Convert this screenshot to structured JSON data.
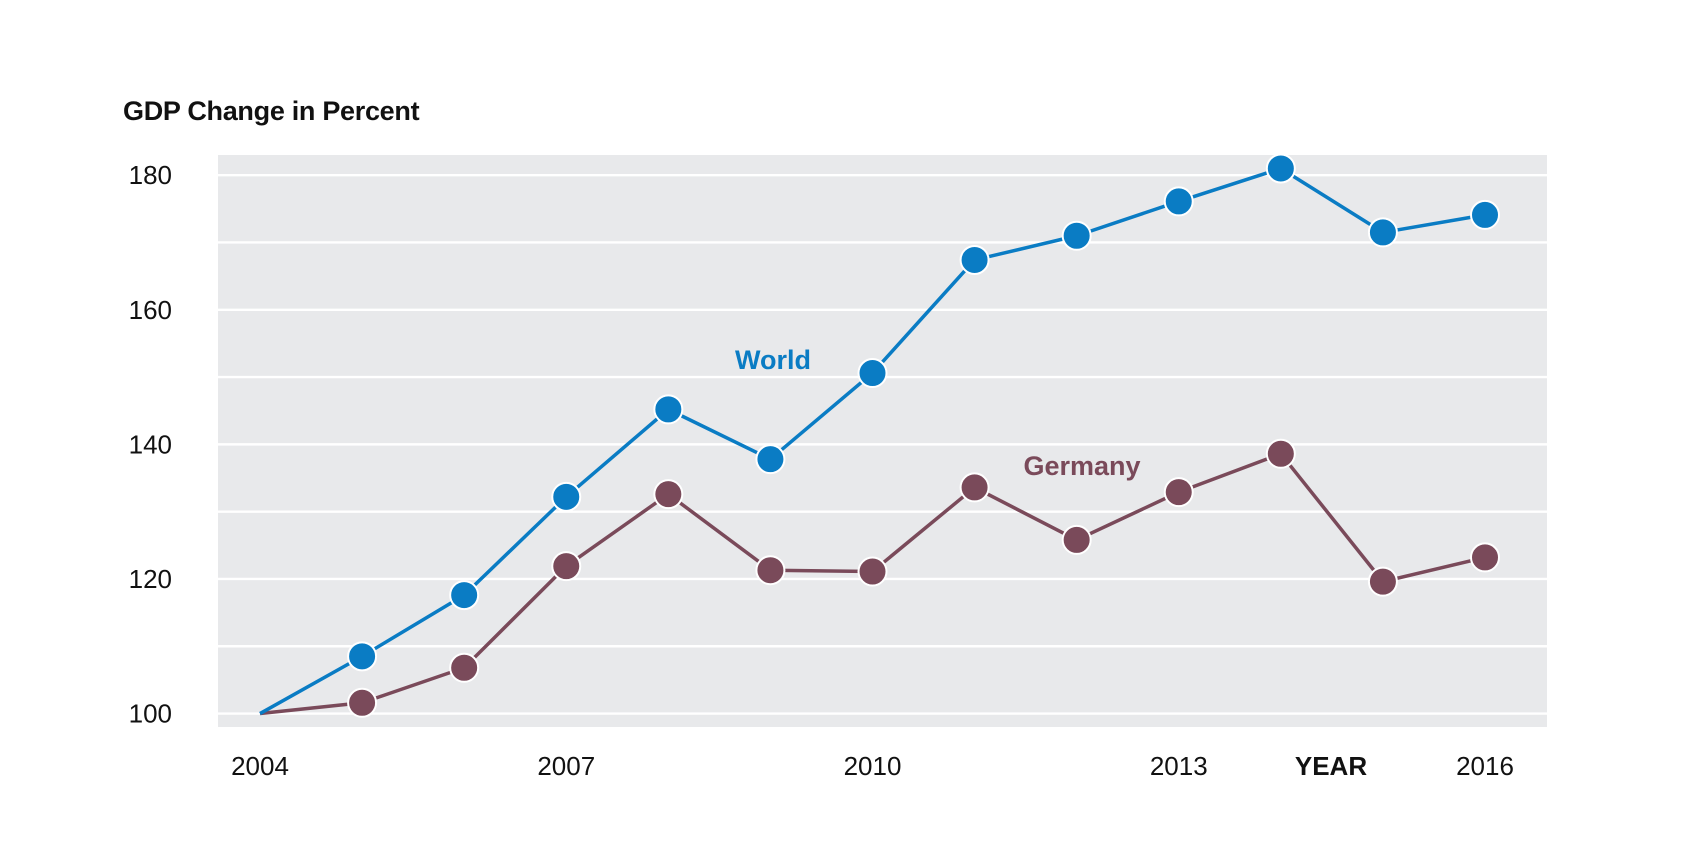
{
  "chart_data": {
    "type": "line",
    "title": "GDP Change in Percent",
    "xlabel": "YEAR",
    "ylabel": "",
    "x": [
      2004,
      2005,
      2006,
      2007,
      2008,
      2009,
      2010,
      2011,
      2012,
      2013,
      2014,
      2015,
      2016
    ],
    "xticks": [
      "2004",
      "2007",
      "2010",
      "2013",
      "2016"
    ],
    "yticks": [
      "100",
      "120",
      "140",
      "160",
      "180"
    ],
    "ylim": [
      98,
      183
    ],
    "xlim": [
      2004,
      2016
    ],
    "grid": true,
    "series": [
      {
        "name": "World",
        "color": "#0a7cc4",
        "values": [
          100,
          108.5,
          117.6,
          132.2,
          145.2,
          137.8,
          150.6,
          167.4,
          171,
          176.1,
          181,
          171.5,
          174.1
        ]
      },
      {
        "name": "Germany",
        "color": "#7a4a5a",
        "values": [
          100,
          101.6,
          106.8,
          121.9,
          132.6,
          121.3,
          121.1,
          133.6,
          125.8,
          132.9,
          138.6,
          119.6,
          123.2
        ]
      }
    ]
  },
  "colors": {
    "plot_background": "#e8e9eb",
    "grid": "#ffffff",
    "text": "#111111"
  }
}
